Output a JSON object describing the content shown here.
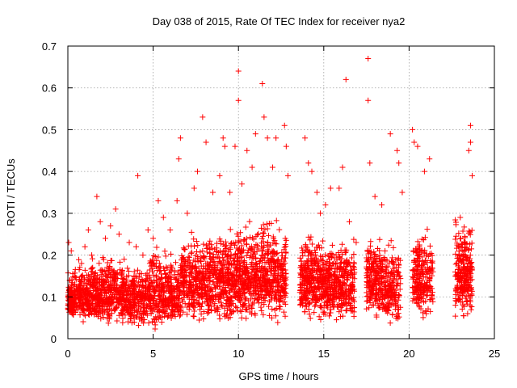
{
  "chart_data": {
    "type": "scatter",
    "title": "Day 038 of 2015, Rate Of TEC Index for receiver nya2",
    "xlabel": "GPS time / hours",
    "ylabel": "ROTI / TECUs",
    "xlim": [
      0,
      25
    ],
    "ylim": [
      0,
      0.7
    ],
    "xticks": [
      0,
      5,
      10,
      15,
      20,
      25
    ],
    "yticks": [
      0,
      0.1,
      0.2,
      0.3,
      0.4,
      0.5,
      0.6,
      0.7
    ],
    "grid": true,
    "marker": "+",
    "color": "#ff0000",
    "series": [
      {
        "name": "ROTI",
        "points": [
          [
            0.05,
            0.23
          ],
          [
            0.2,
            0.21
          ],
          [
            0.1,
            0.14
          ],
          [
            0.3,
            0.09
          ],
          [
            0.5,
            0.12
          ],
          [
            0.8,
            0.18
          ],
          [
            1.0,
            0.22
          ],
          [
            1.2,
            0.26
          ],
          [
            1.4,
            0.2
          ],
          [
            1.7,
            0.34
          ],
          [
            1.9,
            0.28
          ],
          [
            2.2,
            0.24
          ],
          [
            2.5,
            0.27
          ],
          [
            2.8,
            0.31
          ],
          [
            3.0,
            0.25
          ],
          [
            3.3,
            0.19
          ],
          [
            3.6,
            0.23
          ],
          [
            4.0,
            0.22
          ],
          [
            4.1,
            0.39
          ],
          [
            4.4,
            0.2
          ],
          [
            4.7,
            0.26
          ],
          [
            5.0,
            0.24
          ],
          [
            5.3,
            0.33
          ],
          [
            5.6,
            0.29
          ],
          [
            6.0,
            0.26
          ],
          [
            6.4,
            0.33
          ],
          [
            6.5,
            0.43
          ],
          [
            6.6,
            0.48
          ],
          [
            7.0,
            0.3
          ],
          [
            7.4,
            0.36
          ],
          [
            7.6,
            0.4
          ],
          [
            7.9,
            0.53
          ],
          [
            8.1,
            0.47
          ],
          [
            8.5,
            0.35
          ],
          [
            8.9,
            0.39
          ],
          [
            9.1,
            0.48
          ],
          [
            9.2,
            0.46
          ],
          [
            9.5,
            0.35
          ],
          [
            9.8,
            0.46
          ],
          [
            10.0,
            0.64
          ],
          [
            10.0,
            0.57
          ],
          [
            10.2,
            0.37
          ],
          [
            10.5,
            0.45
          ],
          [
            10.8,
            0.41
          ],
          [
            11.0,
            0.49
          ],
          [
            11.4,
            0.61
          ],
          [
            11.5,
            0.53
          ],
          [
            11.7,
            0.48
          ],
          [
            12.0,
            0.41
          ],
          [
            12.2,
            0.48
          ],
          [
            12.7,
            0.51
          ],
          [
            12.8,
            0.46
          ],
          [
            12.9,
            0.39
          ],
          [
            13.9,
            0.48
          ],
          [
            14.1,
            0.42
          ],
          [
            14.3,
            0.4
          ],
          [
            14.6,
            0.35
          ],
          [
            14.8,
            0.3
          ],
          [
            15.1,
            0.32
          ],
          [
            15.4,
            0.36
          ],
          [
            15.9,
            0.36
          ],
          [
            16.1,
            0.41
          ],
          [
            16.3,
            0.62
          ],
          [
            16.5,
            0.28
          ],
          [
            16.9,
            0.23
          ],
          [
            17.6,
            0.67
          ],
          [
            17.6,
            0.57
          ],
          [
            17.7,
            0.42
          ],
          [
            18.0,
            0.34
          ],
          [
            18.4,
            0.32
          ],
          [
            18.9,
            0.49
          ],
          [
            19.3,
            0.45
          ],
          [
            19.4,
            0.42
          ],
          [
            19.6,
            0.35
          ],
          [
            20.2,
            0.5
          ],
          [
            20.3,
            0.47
          ],
          [
            20.5,
            0.46
          ],
          [
            20.9,
            0.4
          ],
          [
            21.2,
            0.43
          ],
          [
            23.0,
            0.29
          ],
          [
            23.5,
            0.45
          ],
          [
            23.6,
            0.51
          ],
          [
            23.6,
            0.47
          ],
          [
            23.7,
            0.39
          ]
        ]
      }
    ],
    "density": [
      {
        "x": [
          0.0,
          0.4
        ],
        "lo": 0.04,
        "hi": 0.16,
        "n": 110
      },
      {
        "x": [
          0.4,
          1.8
        ],
        "lo": 0.03,
        "hi": 0.2,
        "n": 280
      },
      {
        "x": [
          1.8,
          3.2
        ],
        "lo": 0.03,
        "hi": 0.21,
        "n": 280
      },
      {
        "x": [
          3.2,
          4.6
        ],
        "lo": 0.02,
        "hi": 0.19,
        "n": 260
      },
      {
        "x": [
          4.6,
          6.1
        ],
        "lo": 0.02,
        "hi": 0.23,
        "n": 280
      },
      {
        "x": [
          6.1,
          6.6
        ],
        "lo": 0.02,
        "hi": 0.21,
        "n": 90
      },
      {
        "x": [
          6.6,
          8.3
        ],
        "lo": 0.03,
        "hi": 0.27,
        "n": 340
      },
      {
        "x": [
          8.3,
          9.8
        ],
        "lo": 0.03,
        "hi": 0.28,
        "n": 320
      },
      {
        "x": [
          9.8,
          11.3
        ],
        "lo": 0.03,
        "hi": 0.3,
        "n": 330
      },
      {
        "x": [
          11.3,
          12.8
        ],
        "lo": 0.03,
        "hi": 0.31,
        "n": 330
      },
      {
        "x": [
          13.6,
          14.6
        ],
        "lo": 0.04,
        "hi": 0.28,
        "n": 240
      },
      {
        "x": [
          14.6,
          15.6
        ],
        "lo": 0.03,
        "hi": 0.25,
        "n": 220
      },
      {
        "x": [
          15.6,
          16.8
        ],
        "lo": 0.03,
        "hi": 0.26,
        "n": 240
      },
      {
        "x": [
          17.5,
          18.4
        ],
        "lo": 0.04,
        "hi": 0.27,
        "n": 200
      },
      {
        "x": [
          18.4,
          19.5
        ],
        "lo": 0.02,
        "hi": 0.25,
        "n": 200
      },
      {
        "x": [
          20.2,
          21.4
        ],
        "lo": 0.04,
        "hi": 0.28,
        "n": 240
      },
      {
        "x": [
          22.7,
          23.7
        ],
        "lo": 0.04,
        "hi": 0.3,
        "n": 260
      }
    ]
  }
}
